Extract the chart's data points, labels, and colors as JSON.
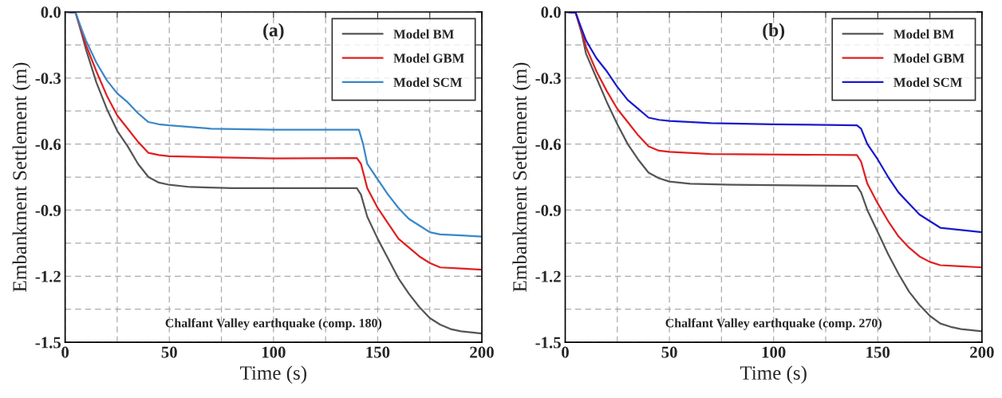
{
  "chart_data": [
    {
      "type": "line",
      "title": "(a)",
      "xlabel": "Time (s)",
      "ylabel": "Embankment Settlement (m)",
      "xlim": [
        0,
        200
      ],
      "ylim": [
        -1.5,
        0.0
      ],
      "xticks": [
        0,
        {
          "value": 25,
          "label": null
        },
        50,
        {
          "value": 75,
          "label": null
        },
        100,
        {
          "value": 125,
          "label": null
        },
        150,
        {
          "value": 175,
          "label": null
        },
        200
      ],
      "yticks": [
        -1.5,
        {
          "value": -1.35,
          "label": null
        },
        -1.2,
        {
          "value": -1.05,
          "label": null
        },
        -0.9,
        {
          "value": -0.75,
          "label": null
        },
        -0.6,
        {
          "value": -0.45,
          "label": null
        },
        -0.3,
        {
          "value": -0.15,
          "label": null
        },
        {
          "value": 0,
          "label": "0.0"
        }
      ],
      "grid": true,
      "legend": "top right",
      "line_style": "solid",
      "marker": "none",
      "annotations": [
        "Chalfant Valley earthquake (comp. 180)"
      ],
      "series": [
        {
          "name": "Model BM",
          "color": "#555555",
          "x": [
            0,
            5,
            8,
            10,
            15,
            20,
            25,
            30,
            35,
            40,
            45,
            50,
            60,
            80,
            100,
            120,
            140,
            142,
            145,
            150,
            155,
            160,
            165,
            170,
            175,
            180,
            185,
            190,
            200
          ],
          "values": [
            0,
            -0.003,
            -0.1,
            -0.17,
            -0.32,
            -0.44,
            -0.54,
            -0.61,
            -0.69,
            -0.75,
            -0.775,
            -0.785,
            -0.795,
            -0.8,
            -0.8,
            -0.8,
            -0.8,
            -0.83,
            -0.93,
            -1.03,
            -1.12,
            -1.21,
            -1.28,
            -1.34,
            -1.39,
            -1.42,
            -1.44,
            -1.45,
            -1.46
          ]
        },
        {
          "name": "Model GBM",
          "color": "#e02020",
          "x": [
            0,
            5,
            8,
            10,
            15,
            20,
            25,
            30,
            35,
            40,
            45,
            50,
            70,
            100,
            140,
            142,
            145,
            150,
            155,
            160,
            165,
            170,
            175,
            180,
            190,
            200
          ],
          "values": [
            0,
            -0.003,
            -0.09,
            -0.15,
            -0.27,
            -0.38,
            -0.47,
            -0.53,
            -0.59,
            -0.64,
            -0.65,
            -0.655,
            -0.66,
            -0.665,
            -0.663,
            -0.69,
            -0.8,
            -0.89,
            -0.96,
            -1.03,
            -1.07,
            -1.11,
            -1.14,
            -1.16,
            -1.165,
            -1.17
          ]
        },
        {
          "name": "Model SCM",
          "color": "#3a87c8",
          "x": [
            0,
            5,
            8,
            10,
            15,
            20,
            25,
            30,
            35,
            40,
            45,
            50,
            70,
            100,
            141,
            143,
            145,
            150,
            155,
            160,
            165,
            170,
            175,
            180,
            190,
            200
          ],
          "values": [
            0,
            -0.003,
            -0.08,
            -0.13,
            -0.23,
            -0.31,
            -0.37,
            -0.41,
            -0.46,
            -0.5,
            -0.51,
            -0.515,
            -0.53,
            -0.535,
            -0.535,
            -0.6,
            -0.69,
            -0.76,
            -0.83,
            -0.89,
            -0.94,
            -0.97,
            -1.0,
            -1.01,
            -1.015,
            -1.02
          ]
        }
      ]
    },
    {
      "type": "line",
      "title": "(b)",
      "xlabel": "Time (s)",
      "ylabel": "Embankment Settlement (m)",
      "xlim": [
        0,
        200
      ],
      "ylim": [
        -1.5,
        0.0
      ],
      "xticks": [
        0,
        {
          "value": 25,
          "label": null
        },
        50,
        {
          "value": 75,
          "label": null
        },
        100,
        {
          "value": 125,
          "label": null
        },
        150,
        {
          "value": 175,
          "label": null
        },
        200
      ],
      "yticks": [
        -1.5,
        {
          "value": -1.35,
          "label": null
        },
        -1.2,
        {
          "value": -1.05,
          "label": null
        },
        -0.9,
        {
          "value": -0.75,
          "label": null
        },
        -0.6,
        {
          "value": -0.45,
          "label": null
        },
        -0.3,
        {
          "value": -0.15,
          "label": null
        },
        {
          "value": 0,
          "label": "0.0"
        }
      ],
      "grid": true,
      "legend": "top right",
      "line_style": "solid",
      "marker": "none",
      "annotations": [
        "Chalfant Valley earthquake (comp. 270)"
      ],
      "series": [
        {
          "name": "Model BM",
          "color": "#555555",
          "x": [
            0,
            5,
            8,
            10,
            15,
            20,
            25,
            30,
            35,
            40,
            45,
            50,
            60,
            80,
            140,
            142,
            145,
            150,
            155,
            160,
            165,
            170,
            175,
            180,
            185,
            190,
            200
          ],
          "values": [
            0,
            -0.003,
            -0.1,
            -0.19,
            -0.3,
            -0.41,
            -0.51,
            -0.6,
            -0.67,
            -0.73,
            -0.755,
            -0.77,
            -0.78,
            -0.785,
            -0.79,
            -0.82,
            -0.9,
            -1.0,
            -1.1,
            -1.19,
            -1.27,
            -1.33,
            -1.38,
            -1.415,
            -1.43,
            -1.44,
            -1.45
          ]
        },
        {
          "name": "Model GBM",
          "color": "#e02020",
          "x": [
            0,
            5,
            8,
            10,
            15,
            20,
            25,
            30,
            35,
            40,
            45,
            50,
            70,
            140,
            142,
            145,
            150,
            155,
            160,
            165,
            170,
            175,
            180,
            190,
            200
          ],
          "values": [
            0,
            -0.003,
            -0.09,
            -0.16,
            -0.27,
            -0.36,
            -0.44,
            -0.5,
            -0.56,
            -0.61,
            -0.63,
            -0.635,
            -0.645,
            -0.65,
            -0.68,
            -0.78,
            -0.87,
            -0.95,
            -1.02,
            -1.07,
            -1.11,
            -1.135,
            -1.15,
            -1.155,
            -1.16
          ]
        },
        {
          "name": "Model SCM",
          "color": "#1a1acc",
          "x": [
            0,
            5,
            8,
            10,
            15,
            20,
            25,
            30,
            35,
            40,
            45,
            50,
            70,
            100,
            140,
            142,
            145,
            150,
            155,
            160,
            165,
            170,
            175,
            180,
            190,
            200
          ],
          "values": [
            0,
            -0.003,
            -0.08,
            -0.13,
            -0.21,
            -0.27,
            -0.34,
            -0.4,
            -0.44,
            -0.48,
            -0.49,
            -0.495,
            -0.505,
            -0.51,
            -0.515,
            -0.53,
            -0.6,
            -0.67,
            -0.75,
            -0.82,
            -0.87,
            -0.92,
            -0.95,
            -0.98,
            -0.99,
            -1.0
          ]
        }
      ]
    }
  ]
}
